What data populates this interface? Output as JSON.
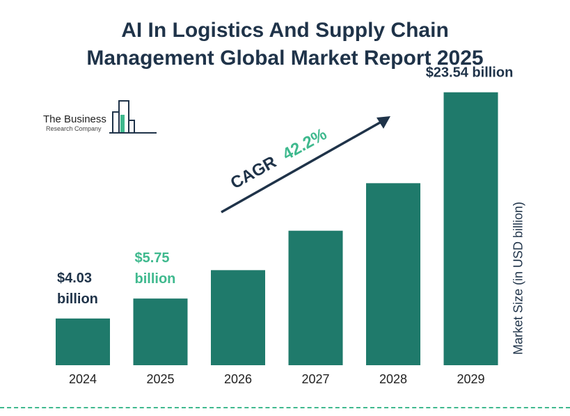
{
  "title_line1": "AI In Logistics And Supply Chain",
  "title_line2": "Management Global Market Report 2025",
  "logo": {
    "line1": "The Business",
    "line2": "Research Company"
  },
  "cagr": {
    "label": "CAGR",
    "value": "42.2%"
  },
  "colors": {
    "bar": "#1f7a6b",
    "title": "#1f3349",
    "accent": "#3fb98e"
  },
  "chart_data": {
    "type": "bar",
    "categories": [
      "2024",
      "2025",
      "2026",
      "2027",
      "2028",
      "2029"
    ],
    "values": [
      4.03,
      5.75,
      8.2,
      11.6,
      15.7,
      23.54
    ],
    "data_labels": [
      {
        "index": 0,
        "lines": [
          "$4.03",
          "billion"
        ],
        "color": "#1f3349"
      },
      {
        "index": 1,
        "lines": [
          "$5.75",
          "billion"
        ],
        "color": "#3fb98e"
      },
      {
        "index": 5,
        "lines": [
          "$23.54 billion"
        ],
        "color": "#1f3349"
      }
    ],
    "ylabel": "Market Size (in USD billion)",
    "xlabel": "",
    "ylim": [
      0,
      24
    ]
  }
}
